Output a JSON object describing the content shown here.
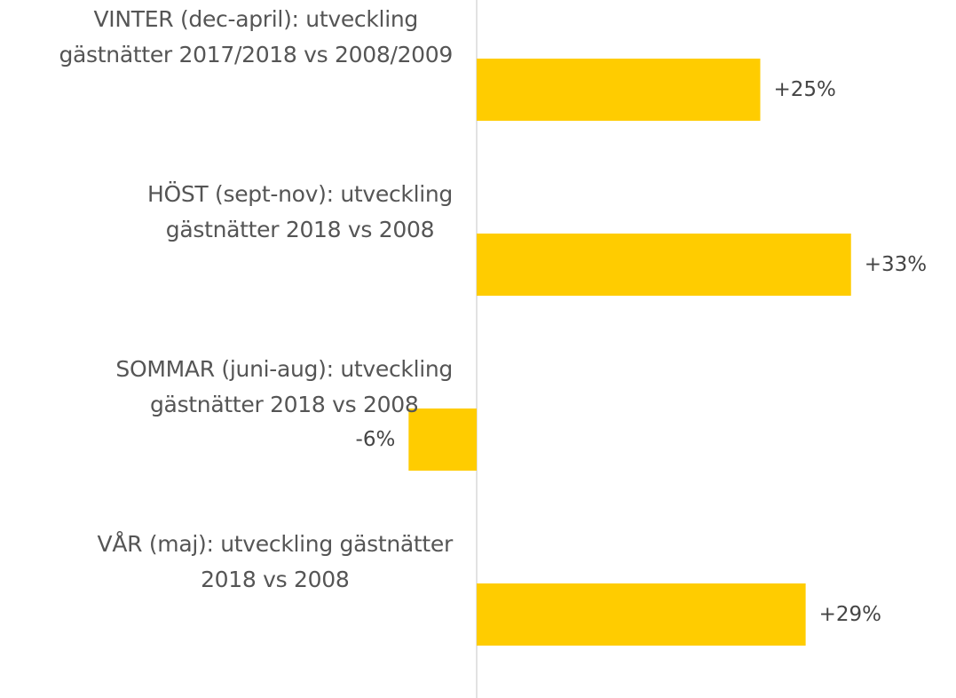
{
  "chart_data": {
    "type": "barh",
    "categories": [
      "VINTER (dec-april): utveckling\ngästnätter 2017/2018 vs 2008/2009",
      "HÖST (sept-nov): utveckling\ngästnätter 2018 vs 2008",
      "SOMMAR (juni-aug): utveckling\ngästnätter 2018 vs 2008",
      "VÅR (maj): utveckling gästnätter\n2018 vs 2008"
    ],
    "values": [
      25,
      33,
      -6,
      29
    ],
    "value_labels": [
      "+25%",
      "+33%",
      "-6%",
      "+29%"
    ],
    "color": "#ffcc00"
  }
}
